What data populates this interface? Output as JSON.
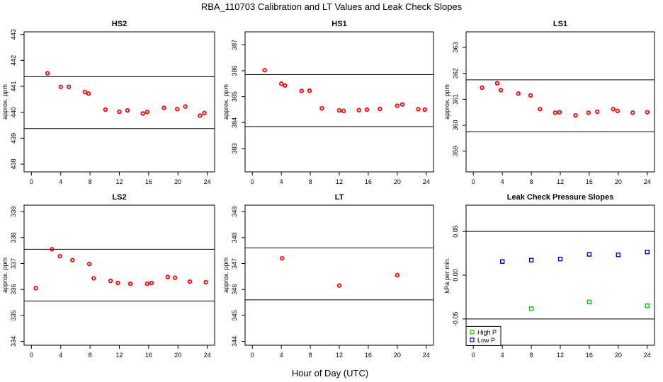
{
  "figure": {
    "title": "RBA_110703  Calibration and LT Values and Leak Check Slopes",
    "xlabel": "Hour of Day (UTC)"
  },
  "chart_data": [
    {
      "type": "scatter",
      "title": "HS2",
      "xlabel": "",
      "ylabel": "approx. ppm",
      "xlim": [
        -1,
        25
      ],
      "ylim": [
        437.7,
        443.1
      ],
      "xticks": [
        0,
        4,
        8,
        12,
        16,
        20,
        24
      ],
      "yticks": [
        438,
        439,
        440,
        441,
        442,
        443
      ],
      "hlines": [
        441.37,
        439.37
      ],
      "grid": false,
      "series": [
        {
          "marker_color": "#ff0000",
          "fill": "#ff0000",
          "x": [
            2.2,
            4.0,
            5.1,
            7.3,
            7.8,
            10.1,
            12.0,
            13.1,
            15.2,
            15.8,
            18.1,
            19.9,
            21.0,
            23.0,
            23.6
          ],
          "y": [
            441.5,
            440.98,
            440.98,
            440.78,
            440.72,
            440.1,
            440.02,
            440.07,
            439.95,
            440.01,
            440.17,
            440.12,
            440.22,
            439.87,
            439.97
          ]
        }
      ]
    },
    {
      "type": "scatter",
      "title": "HS1",
      "xlabel": "",
      "ylabel": "approx. ppm",
      "xlim": [
        -1,
        25
      ],
      "ylim": [
        382.1,
        387.5
      ],
      "xticks": [
        0,
        4,
        8,
        12,
        16,
        20,
        24
      ],
      "yticks": [
        383,
        384,
        385,
        386,
        387
      ],
      "hlines": [
        385.85,
        383.85
      ],
      "grid": false,
      "series": [
        {
          "marker_color": "#ff0000",
          "fill": "#ff0000",
          "x": [
            1.7,
            4.0,
            4.5,
            6.8,
            7.9,
            9.6,
            12.0,
            12.6,
            14.7,
            15.8,
            17.6,
            20.0,
            20.7,
            22.9,
            23.8
          ],
          "y": [
            386.02,
            385.5,
            385.43,
            385.22,
            385.23,
            384.55,
            384.47,
            384.45,
            384.48,
            384.5,
            384.53,
            384.65,
            384.7,
            384.52,
            384.5
          ]
        }
      ]
    },
    {
      "type": "scatter",
      "title": "LS1",
      "xlabel": "",
      "ylabel": "approx. ppm",
      "xlim": [
        -1,
        25
      ],
      "ylim": [
        358.2,
        363.6
      ],
      "xticks": [
        0,
        4,
        8,
        12,
        16,
        20,
        24
      ],
      "yticks": [
        359,
        360,
        361,
        362,
        363
      ],
      "hlines": [
        361.75,
        359.75
      ],
      "grid": false,
      "series": [
        {
          "marker_color": "#ff0000",
          "fill": "#ff0000",
          "x": [
            1.2,
            3.3,
            3.8,
            6.2,
            7.9,
            9.2,
            11.3,
            11.9,
            14.1,
            15.9,
            17.1,
            19.3,
            19.9,
            22.0,
            24.0
          ],
          "y": [
            361.45,
            361.62,
            361.35,
            361.22,
            361.15,
            360.62,
            360.48,
            360.5,
            360.38,
            360.48,
            360.52,
            360.62,
            360.55,
            360.48,
            360.5
          ]
        }
      ]
    },
    {
      "type": "scatter",
      "title": "LS2",
      "xlabel": "",
      "ylabel": "approx. ppm",
      "xlim": [
        -1,
        25
      ],
      "ylim": [
        333.85,
        339.25
      ],
      "xticks": [
        0,
        4,
        8,
        12,
        16,
        20,
        24
      ],
      "yticks": [
        334,
        335,
        336,
        337,
        338,
        339
      ],
      "hlines": [
        337.55,
        335.55
      ],
      "grid": false,
      "series": [
        {
          "marker_color": "#ff0000",
          "fill": "#ff0000",
          "x": [
            0.6,
            2.8,
            3.9,
            5.6,
            7.9,
            8.5,
            10.8,
            11.8,
            13.5,
            15.8,
            16.4,
            18.6,
            19.6,
            21.6,
            23.8
          ],
          "y": [
            336.05,
            337.55,
            337.28,
            337.13,
            336.98,
            336.43,
            336.33,
            336.25,
            336.22,
            336.22,
            336.25,
            336.48,
            336.45,
            336.3,
            336.28
          ]
        }
      ]
    },
    {
      "type": "scatter",
      "title": "LT",
      "xlabel": "",
      "ylabel": "approx. ppm",
      "xlim": [
        -1,
        25
      ],
      "ylim": [
        343.85,
        349.25
      ],
      "xticks": [
        0,
        4,
        8,
        12,
        16,
        20,
        24
      ],
      "yticks": [
        344,
        345,
        346,
        347,
        348,
        349
      ],
      "hlines": [
        347.6,
        345.6
      ],
      "grid": false,
      "series": [
        {
          "marker_color": "#ff0000",
          "fill": "#ff0000",
          "x": [
            4.1,
            12.0,
            20.0
          ],
          "y": [
            347.2,
            346.15,
            346.55
          ]
        }
      ]
    },
    {
      "type": "scatter",
      "title": "Leak Check Pressure Slopes",
      "xlabel": "",
      "ylabel": "kPa per min.",
      "xlim": [
        -1,
        25
      ],
      "ylim": [
        -0.08,
        0.08
      ],
      "xticks": [
        0,
        4,
        8,
        12,
        16,
        20,
        24
      ],
      "yticks": [
        -0.05,
        0.0,
        0.05
      ],
      "ytick_labels": [
        "-0.05",
        "0.00",
        "0.05"
      ],
      "hlines": [
        0.05,
        -0.05
      ],
      "grid": false,
      "legend": {
        "position": "bottom-left",
        "entries": [
          "High P",
          "Low P"
        ]
      },
      "series": [
        {
          "name": "High P",
          "marker_color": "#00cc00",
          "x": [
            8.0,
            16.0,
            24.0
          ],
          "y": [
            -0.0383,
            -0.0305,
            -0.035
          ]
        },
        {
          "name": "Low P",
          "marker_color": "#0000dd",
          "x": [
            4.0,
            8.0,
            12.0,
            16.0,
            20.0,
            24.0
          ],
          "y": [
            0.0156,
            0.0172,
            0.0185,
            0.0238,
            0.0232,
            0.0265
          ]
        }
      ]
    }
  ]
}
